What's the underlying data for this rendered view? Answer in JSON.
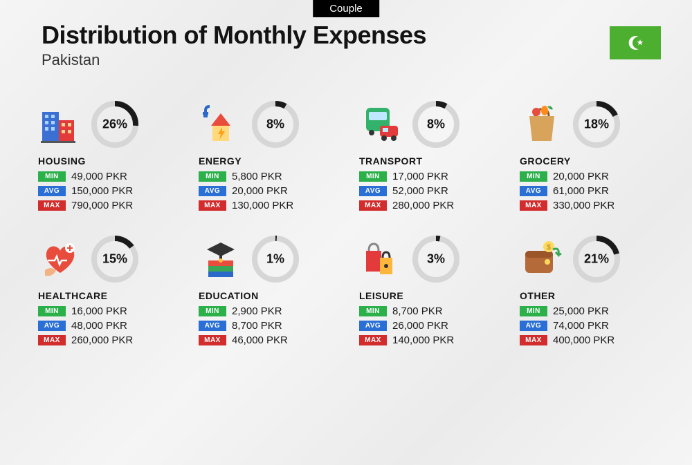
{
  "tab_label": "Couple",
  "title": "Distribution of Monthly Expenses",
  "subtitle": "Pakistan",
  "currency": "PKR",
  "flag_bg": "#4caf2f",
  "ring": {
    "radius": 30,
    "stroke_width": 8,
    "track_color": "#d6d6d6",
    "progress_color": "#1a1a1a"
  },
  "badge_labels": {
    "min": "MIN",
    "avg": "AVG",
    "max": "MAX"
  },
  "badge_colors": {
    "min": "#2bb04a",
    "avg": "#2a6fd6",
    "max": "#d22c2c"
  },
  "categories": [
    {
      "key": "housing",
      "name": "HOUSING",
      "percent": 26,
      "min": "49,000 PKR",
      "avg": "150,000 PKR",
      "max": "790,000 PKR"
    },
    {
      "key": "energy",
      "name": "ENERGY",
      "percent": 8,
      "min": "5,800 PKR",
      "avg": "20,000 PKR",
      "max": "130,000 PKR"
    },
    {
      "key": "transport",
      "name": "TRANSPORT",
      "percent": 8,
      "min": "17,000 PKR",
      "avg": "52,000 PKR",
      "max": "280,000 PKR"
    },
    {
      "key": "grocery",
      "name": "GROCERY",
      "percent": 18,
      "min": "20,000 PKR",
      "avg": "61,000 PKR",
      "max": "330,000 PKR"
    },
    {
      "key": "healthcare",
      "name": "HEALTHCARE",
      "percent": 15,
      "min": "16,000 PKR",
      "avg": "48,000 PKR",
      "max": "260,000 PKR"
    },
    {
      "key": "education",
      "name": "EDUCATION",
      "percent": 1,
      "min": "2,900 PKR",
      "avg": "8,700 PKR",
      "max": "46,000 PKR"
    },
    {
      "key": "leisure",
      "name": "LEISURE",
      "percent": 3,
      "min": "8,700 PKR",
      "avg": "26,000 PKR",
      "max": "140,000 PKR"
    },
    {
      "key": "other",
      "name": "OTHER",
      "percent": 21,
      "min": "25,000 PKR",
      "avg": "74,000 PKR",
      "max": "400,000 PKR"
    }
  ]
}
